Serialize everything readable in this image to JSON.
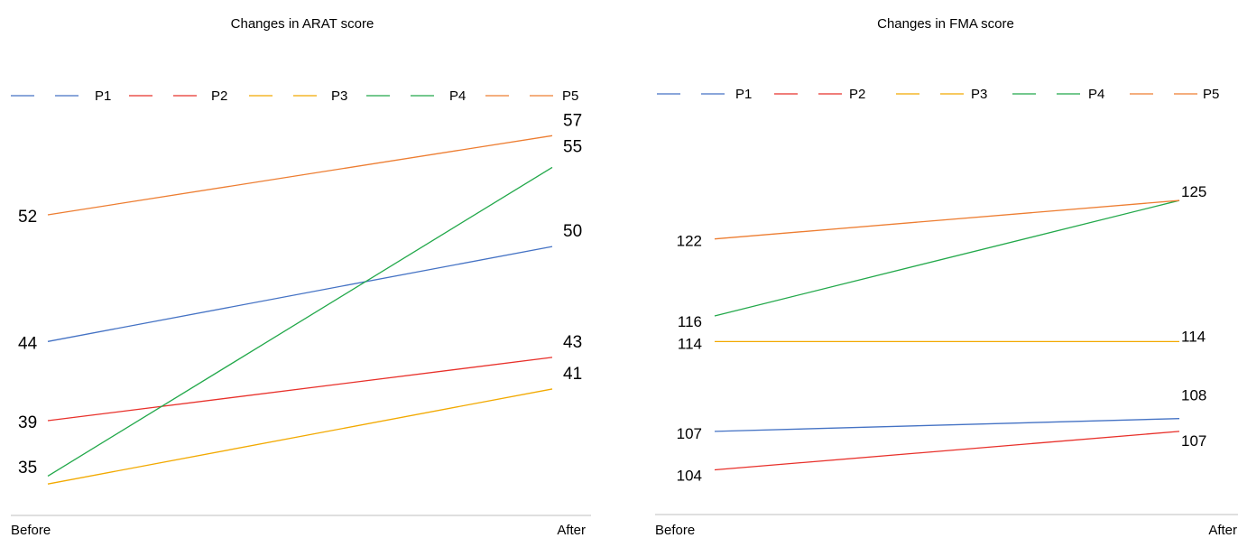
{
  "chart_data": [
    {
      "type": "line",
      "title": "Changes in ARAT score",
      "categories": [
        "Before",
        "After"
      ],
      "legend": "top",
      "grid": false,
      "series": [
        {
          "name": "P1",
          "color": "#4472c4",
          "values": [
            44,
            50
          ]
        },
        {
          "name": "P2",
          "color": "#e8302a",
          "values": [
            39,
            43
          ]
        },
        {
          "name": "P3",
          "color": "#f2a900",
          "values": [
            35,
            41
          ]
        },
        {
          "name": "P4",
          "color": "#22a84a",
          "values": [
            35.5,
            55
          ]
        },
        {
          "name": "P5",
          "color": "#ed7d31",
          "values": [
            52,
            57
          ]
        }
      ],
      "before_labels": [
        {
          "text": "52",
          "value": 52
        },
        {
          "text": "44",
          "value": 44
        },
        {
          "text": "39",
          "value": 39
        },
        {
          "text": "35",
          "value": 35
        }
      ],
      "after_labels": [
        {
          "text": "57",
          "value": 57
        },
        {
          "text": "55",
          "value": 55
        },
        {
          "text": "50",
          "value": 50
        },
        {
          "text": "43",
          "value": 43
        },
        {
          "text": "41",
          "value": 41
        }
      ],
      "ylim": [
        33.3,
        58.5
      ]
    },
    {
      "type": "line",
      "title": "Changes in FMA score",
      "categories": [
        "Before",
        "After"
      ],
      "legend": "top",
      "grid": false,
      "series": [
        {
          "name": "P1",
          "color": "#4472c4",
          "values": [
            107,
            108
          ]
        },
        {
          "name": "P2",
          "color": "#e8302a",
          "values": [
            104,
            107
          ]
        },
        {
          "name": "P3",
          "color": "#f2a900",
          "values": [
            114,
            114
          ]
        },
        {
          "name": "P4",
          "color": "#22a84a",
          "values": [
            116,
            125
          ]
        },
        {
          "name": "P5",
          "color": "#ed7d31",
          "values": [
            122,
            125
          ]
        }
      ],
      "before_labels": [
        {
          "text": "122",
          "value": 122
        },
        {
          "text": "116",
          "value": 116
        },
        {
          "text": "114",
          "value": 114
        },
        {
          "text": "107",
          "value": 107
        },
        {
          "text": "104",
          "value": 104
        }
      ],
      "after_labels": [
        {
          "text": "125",
          "value": 125
        },
        {
          "text": "114",
          "value": 114
        },
        {
          "text": "108",
          "value": 108
        },
        {
          "text": "107",
          "value": 107
        }
      ],
      "ylim": [
        100.8,
        131.9
      ]
    }
  ]
}
